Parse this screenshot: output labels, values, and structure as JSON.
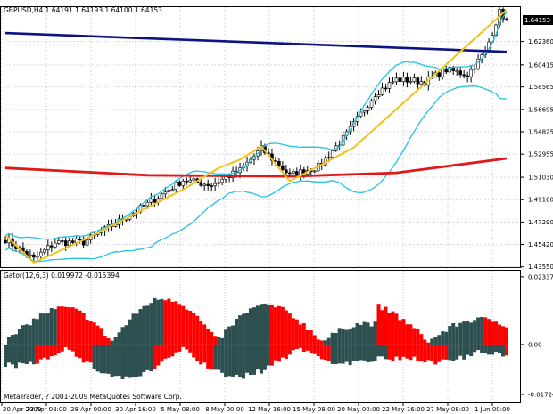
{
  "chart_data": [
    {
      "type": "candlestick",
      "title": "GBPUSD,H4  1.64191 1.64193 1.64100 1.64153",
      "current_price": 1.64153,
      "current_price_label": "1.64153",
      "ylim": [
        1.4353,
        1.6523
      ],
      "y_ticks": [
        "1.62360",
        "1.60415",
        "1.58565",
        "1.56695",
        "1.54825",
        "1.52955",
        "1.51030",
        "1.49160",
        "1.47290",
        "1.45420",
        "1.43550"
      ],
      "x_ticks": [
        "20 Apr 2009",
        "23 Apr 08:00",
        "28 Apr 00:00",
        "30 Apr 16:00",
        "5 May 08:00",
        "8 May 00:00",
        "12 May 16:00",
        "15 May 08:00",
        "20 May 00:00",
        "22 May 16:00",
        "27 May 08:00",
        "1 Jun 00:00"
      ],
      "close_anchors": [
        {
          "bar": 0,
          "value": 1.4585
        },
        {
          "bar": 8,
          "value": 1.442
        },
        {
          "bar": 14,
          "value": 1.456
        },
        {
          "bar": 22,
          "value": 1.456
        },
        {
          "bar": 30,
          "value": 1.47
        },
        {
          "bar": 40,
          "value": 1.488
        },
        {
          "bar": 50,
          "value": 1.508
        },
        {
          "bar": 58,
          "value": 1.504
        },
        {
          "bar": 66,
          "value": 1.516
        },
        {
          "bar": 72,
          "value": 1.534
        },
        {
          "bar": 80,
          "value": 1.512
        },
        {
          "bar": 88,
          "value": 1.519
        },
        {
          "bar": 96,
          "value": 1.546
        },
        {
          "bar": 104,
          "value": 1.58
        },
        {
          "bar": 110,
          "value": 1.592
        },
        {
          "bar": 118,
          "value": 1.59
        },
        {
          "bar": 124,
          "value": 1.6
        },
        {
          "bar": 130,
          "value": 1.596
        },
        {
          "bar": 135,
          "value": 1.615
        },
        {
          "bar": 139,
          "value": 1.648
        },
        {
          "bar": 141,
          "value": 1.6415
        }
      ],
      "bar_count": 142,
      "series": [
        {
          "name": "",
          "color": "#0b1480",
          "x": [
            0,
            141
          ],
          "y": [
            1.6307,
            1.615
          ]
        },
        {
          "name": "",
          "color": "#e01818",
          "x": [
            0,
            40,
            80,
            110,
            141
          ],
          "y": [
            1.518,
            1.512,
            1.511,
            1.514,
            1.526
          ]
        },
        {
          "name": "",
          "color": "#f2c21a",
          "x": [
            0,
            8,
            22,
            50,
            60,
            66,
            72,
            80,
            98,
            141
          ],
          "y": [
            1.462,
            1.439,
            1.458,
            1.5,
            1.518,
            1.525,
            1.536,
            1.507,
            1.535,
            1.65
          ]
        }
      ],
      "bollinger_color": "#22c4e0",
      "gridlines": "dotted"
    },
    {
      "type": "bar",
      "title": "Gator(12,6,3) 0.019972 -0.015394",
      "ylim": [
        -0.02,
        0.0255
      ],
      "y_ticks": [
        "0.023374",
        "0.00",
        "-0.01724"
      ],
      "positive_color": "#2d4f4f",
      "negative_color": "#ff0000",
      "footer": "MetaTrader, ? 2001-2009 MetaQuotes Software Corp."
    }
  ]
}
